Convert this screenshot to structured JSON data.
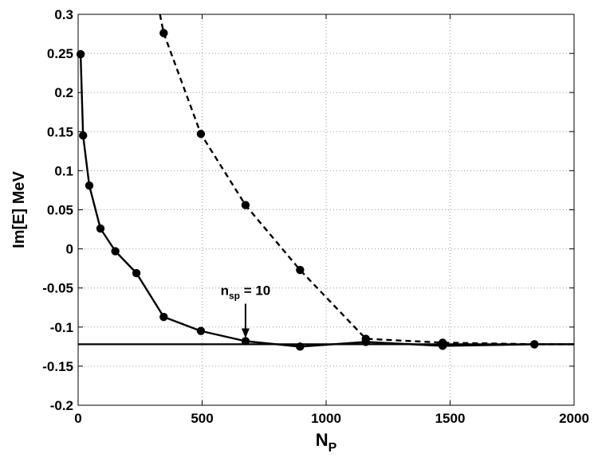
{
  "chart_data": {
    "type": "line",
    "title": "",
    "xlabel": "N",
    "xlabel_subscript": "P",
    "ylabel": "Im[E] MeV",
    "xlim": [
      0,
      2000
    ],
    "ylim": [
      -0.2,
      0.3
    ],
    "xticks": [
      0,
      500,
      1000,
      1500,
      2000
    ],
    "xtick_labels": [
      "0",
      "500",
      "1000",
      "1500",
      "2000"
    ],
    "yticks": [
      -0.2,
      -0.15,
      -0.1,
      -0.05,
      0,
      0.05,
      0.1,
      0.15,
      0.2,
      0.25,
      0.3
    ],
    "ytick_labels": [
      "-0.2",
      "-0.15",
      "-0.1",
      "-0.05",
      "0",
      "0.05",
      "0.1",
      "0.15",
      "0.2",
      "0.25",
      "0.3"
    ],
    "grid": true,
    "reference_line": {
      "y": -0.122,
      "style": "solid"
    },
    "series": [
      {
        "style": "solid",
        "color": "#000000",
        "x": [
          10,
          20,
          45,
          90,
          150,
          235,
          345,
          495,
          675,
          895,
          1160,
          1470,
          1840,
          2000
        ],
        "y": [
          0.249,
          0.145,
          0.081,
          0.026,
          -0.003,
          -0.031,
          -0.087,
          -0.105,
          -0.118,
          -0.125,
          -0.119,
          -0.124,
          -0.122,
          -0.122
        ],
        "markers": [
          true,
          true,
          true,
          true,
          true,
          true,
          true,
          true,
          true,
          true,
          true,
          true,
          true,
          false
        ]
      },
      {
        "style": "dashed",
        "color": "#000000",
        "x": [
          330,
          345,
          495,
          675,
          895,
          1160,
          1470,
          1840,
          2000
        ],
        "y": [
          0.3,
          0.276,
          0.147,
          0.056,
          -0.027,
          -0.115,
          -0.12,
          -0.122,
          -0.122
        ],
        "markers": [
          false,
          true,
          true,
          true,
          true,
          true,
          true,
          true,
          false
        ]
      }
    ],
    "annotation": {
      "base": "n",
      "subscript": "sp",
      "suffix": " = 10",
      "arrow_target": {
        "x": 675,
        "y": -0.118
      }
    }
  }
}
